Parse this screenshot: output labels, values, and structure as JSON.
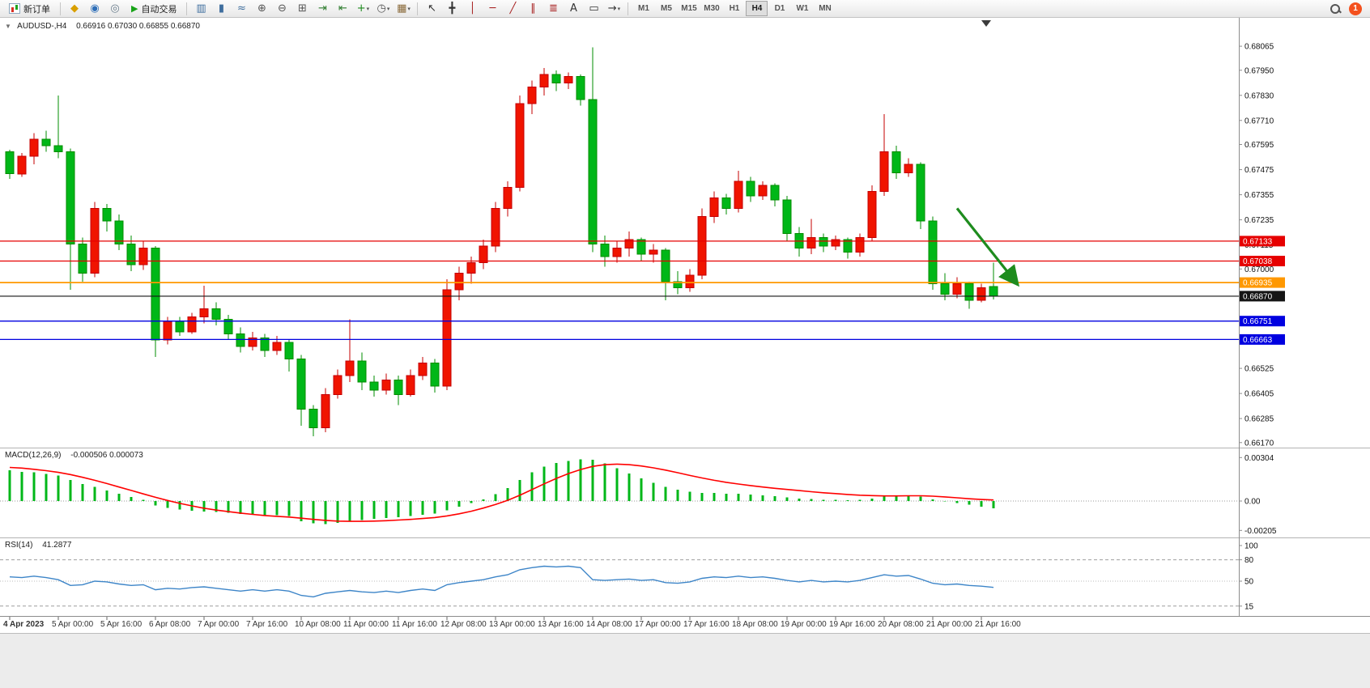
{
  "toolbar": {
    "new_order": {
      "label": "新订单"
    },
    "autotrading": {
      "label": "自动交易"
    },
    "left_icons": [
      {
        "name": "metaeditor-icon",
        "glyph": "◆",
        "color": "#d99f00"
      },
      {
        "name": "mql5-community-icon",
        "glyph": "◉",
        "color": "#2f6fb8"
      },
      {
        "name": "metaquotes-icon",
        "glyph": "◎",
        "color": "#6a7d8c"
      }
    ],
    "chart_icons": [
      {
        "name": "bar-chart-icon",
        "glyph": "▥",
        "color": "#3f6e9e"
      },
      {
        "name": "candlestick-chart-icon",
        "glyph": "▮",
        "color": "#3f6e9e"
      },
      {
        "name": "line-chart-icon",
        "glyph": "≈",
        "color": "#3f6e9e"
      },
      {
        "name": "zoom-in-icon",
        "glyph": "⊕",
        "color": "#555555"
      },
      {
        "name": "zoom-out-icon",
        "glyph": "⊖",
        "color": "#555555"
      },
      {
        "name": "tile-windows-icon",
        "glyph": "⊞",
        "color": "#555555"
      },
      {
        "name": "auto-scroll-icon",
        "glyph": "⇥",
        "color": "#2f7d2f"
      },
      {
        "name": "chart-shift-icon",
        "glyph": "⇤",
        "color": "#2f7d2f"
      },
      {
        "name": "indicators-icon",
        "glyph": "+",
        "color": "#1d8a1d",
        "caret": true
      },
      {
        "name": "periods-icon",
        "glyph": "◷",
        "color": "#555555",
        "caret": true
      },
      {
        "name": "templates-icon",
        "glyph": "▦",
        "color": "#8a6a3a",
        "caret": true
      }
    ],
    "draw_icons": [
      {
        "name": "cursor-icon",
        "glyph": "↖",
        "color": "#333333"
      },
      {
        "name": "crosshair-icon",
        "glyph": "╋",
        "color": "#333333"
      },
      {
        "name": "vertical-line-icon",
        "glyph": "│",
        "color": "#a82222"
      },
      {
        "name": "horizontal-line-icon",
        "glyph": "─",
        "color": "#a82222"
      },
      {
        "name": "trendline-icon",
        "glyph": "╱",
        "color": "#a82222"
      },
      {
        "name": "equidistant-channel-icon",
        "glyph": "∥",
        "color": "#a82222"
      },
      {
        "name": "fibonacci-icon",
        "glyph": "≣",
        "color": "#a82222"
      },
      {
        "name": "text-icon",
        "glyph": "A",
        "color": "#333333"
      },
      {
        "name": "text-label-icon",
        "glyph": "▭",
        "color": "#333333"
      },
      {
        "name": "arrows-shapes-icon",
        "glyph": "→",
        "color": "#333333",
        "caret": true
      }
    ],
    "timeframes": {
      "items": [
        "M1",
        "M5",
        "M15",
        "M30",
        "H1",
        "H4",
        "D1",
        "W1",
        "MN"
      ],
      "active": "H4"
    },
    "notification_count": "1"
  },
  "chart_data": {
    "type": "candlestick",
    "symbol_label": "AUDUSD-,H4",
    "ohlc_text": "0.66916 0.67030 0.66855 0.66870",
    "colors": {
      "bull": "#f01400",
      "bull_dark": "#c40000",
      "bear": "#00b718",
      "bear_dark": "#008c00",
      "rsi_line": "#3d85c8",
      "macd_signal": "#ff0000",
      "macd_hist": "#00b718"
    },
    "price_range": {
      "top": 0.68193,
      "bottom": 0.66146
    },
    "price_axis_ticks": [
      "0.68065",
      "0.67950",
      "0.67830",
      "0.67710",
      "0.67595",
      "0.67475",
      "0.67355",
      "0.67235",
      "0.67115",
      "0.67000",
      "0.66525",
      "0.66405",
      "0.66285",
      "0.66170"
    ],
    "hlines": [
      {
        "price": 0.67133,
        "label": "0.67133",
        "color": "#e60000",
        "width": 1.3
      },
      {
        "price": 0.67038,
        "label": "0.67038",
        "color": "#e60000",
        "width": 1.3
      },
      {
        "price": 0.66935,
        "label": "0.66935",
        "color": "#ff9800",
        "width": 1.8
      },
      {
        "price": 0.6687,
        "label": "0.66870",
        "color": "#151515",
        "width": 1.1
      },
      {
        "price": 0.66751,
        "label": "0.66751",
        "color": "#0000e0",
        "width": 1.3
      },
      {
        "price": 0.66663,
        "label": "0.66663",
        "color": "#0000e0",
        "width": 1.3
      }
    ],
    "arrow": {
      "from": {
        "i": 78,
        "price": 0.6729
      },
      "to": {
        "i": 83,
        "price": 0.66925
      },
      "color": "#1e8c1e"
    },
    "candles": [
      [
        0.6756,
        0.6757,
        0.6743,
        0.67455
      ],
      [
        0.67455,
        0.67555,
        0.6744,
        0.6754
      ],
      [
        0.6754,
        0.6765,
        0.675,
        0.6762
      ],
      [
        0.6762,
        0.6766,
        0.6756,
        0.6759
      ],
      [
        0.6759,
        0.6783,
        0.6753,
        0.6756
      ],
      [
        0.6756,
        0.67575,
        0.669,
        0.6712
      ],
      [
        0.6712,
        0.6715,
        0.6694,
        0.6698
      ],
      [
        0.6698,
        0.6732,
        0.6696,
        0.6729
      ],
      [
        0.6729,
        0.6731,
        0.6718,
        0.6723
      ],
      [
        0.6723,
        0.6726,
        0.6709,
        0.6712
      ],
      [
        0.6712,
        0.6716,
        0.6699,
        0.6702
      ],
      [
        0.6702,
        0.6713,
        0.66995,
        0.671
      ],
      [
        0.671,
        0.6711,
        0.6658,
        0.6666
      ],
      [
        0.6666,
        0.6677,
        0.6664,
        0.6675
      ],
      [
        0.6675,
        0.6677,
        0.6668,
        0.667
      ],
      [
        0.667,
        0.6679,
        0.6669,
        0.6677
      ],
      [
        0.6677,
        0.6692,
        0.6674,
        0.6681
      ],
      [
        0.6681,
        0.6684,
        0.6673,
        0.6676
      ],
      [
        0.6676,
        0.6678,
        0.6666,
        0.6669
      ],
      [
        0.6669,
        0.6672,
        0.666,
        0.6663
      ],
      [
        0.6663,
        0.667,
        0.6661,
        0.6667
      ],
      [
        0.6667,
        0.6669,
        0.6658,
        0.6661
      ],
      [
        0.6661,
        0.6668,
        0.6659,
        0.6665
      ],
      [
        0.6665,
        0.6666,
        0.6651,
        0.6657
      ],
      [
        0.6657,
        0.6659,
        0.6625,
        0.6633
      ],
      [
        0.6633,
        0.6635,
        0.662,
        0.6624
      ],
      [
        0.6624,
        0.6643,
        0.6622,
        0.664
      ],
      [
        0.664,
        0.6652,
        0.6638,
        0.6649
      ],
      [
        0.6649,
        0.6676,
        0.6646,
        0.6656
      ],
      [
        0.6656,
        0.666,
        0.6642,
        0.6646
      ],
      [
        0.6646,
        0.6649,
        0.6639,
        0.6642
      ],
      [
        0.6642,
        0.665,
        0.664,
        0.6647
      ],
      [
        0.6647,
        0.6649,
        0.6635,
        0.664
      ],
      [
        0.664,
        0.6652,
        0.6639,
        0.6649
      ],
      [
        0.6649,
        0.6658,
        0.6647,
        0.6655
      ],
      [
        0.6655,
        0.6657,
        0.6641,
        0.6644
      ],
      [
        0.6644,
        0.6695,
        0.6642,
        0.669
      ],
      [
        0.669,
        0.6701,
        0.6685,
        0.6698
      ],
      [
        0.6698,
        0.6706,
        0.6693,
        0.6703
      ],
      [
        0.6703,
        0.6714,
        0.67,
        0.6711
      ],
      [
        0.6711,
        0.6732,
        0.6708,
        0.6729
      ],
      [
        0.6729,
        0.6742,
        0.6725,
        0.6739
      ],
      [
        0.6739,
        0.6783,
        0.6737,
        0.6779
      ],
      [
        0.6779,
        0.679,
        0.6774,
        0.6787
      ],
      [
        0.6787,
        0.6796,
        0.6783,
        0.6793
      ],
      [
        0.6793,
        0.6795,
        0.6785,
        0.6789
      ],
      [
        0.6789,
        0.6794,
        0.6786,
        0.6792
      ],
      [
        0.6792,
        0.6793,
        0.6778,
        0.6781
      ],
      [
        0.6781,
        0.6806,
        0.6708,
        0.6712
      ],
      [
        0.6712,
        0.6716,
        0.6701,
        0.6706
      ],
      [
        0.6706,
        0.6713,
        0.6703,
        0.671
      ],
      [
        0.671,
        0.6718,
        0.6706,
        0.6714
      ],
      [
        0.6714,
        0.6715,
        0.6704,
        0.6707
      ],
      [
        0.6707,
        0.6712,
        0.6703,
        0.6709
      ],
      [
        0.6709,
        0.671,
        0.6685,
        0.6694
      ],
      [
        0.6694,
        0.6699,
        0.6688,
        0.6691
      ],
      [
        0.6691,
        0.67,
        0.6689,
        0.6697
      ],
      [
        0.6697,
        0.6729,
        0.6695,
        0.6725
      ],
      [
        0.6725,
        0.6737,
        0.6722,
        0.6734
      ],
      [
        0.6734,
        0.6736,
        0.6726,
        0.6729
      ],
      [
        0.6729,
        0.6747,
        0.6727,
        0.6742
      ],
      [
        0.6742,
        0.6744,
        0.6732,
        0.6735
      ],
      [
        0.6735,
        0.6742,
        0.6733,
        0.674
      ],
      [
        0.674,
        0.6741,
        0.673,
        0.6733
      ],
      [
        0.6733,
        0.6735,
        0.6713,
        0.6717
      ],
      [
        0.6717,
        0.672,
        0.6706,
        0.671
      ],
      [
        0.671,
        0.6724,
        0.6707,
        0.6715
      ],
      [
        0.6715,
        0.6717,
        0.6708,
        0.6711
      ],
      [
        0.6711,
        0.6716,
        0.6709,
        0.6714
      ],
      [
        0.6714,
        0.6715,
        0.6705,
        0.6708
      ],
      [
        0.6708,
        0.6717,
        0.6706,
        0.6715
      ],
      [
        0.6715,
        0.674,
        0.6713,
        0.6737
      ],
      [
        0.6737,
        0.6774,
        0.6735,
        0.6756
      ],
      [
        0.6756,
        0.6759,
        0.6743,
        0.6746
      ],
      [
        0.6746,
        0.6753,
        0.6744,
        0.675
      ],
      [
        0.675,
        0.6751,
        0.6719,
        0.6723
      ],
      [
        0.6723,
        0.6725,
        0.669,
        0.6693
      ],
      [
        0.6693,
        0.6698,
        0.6685,
        0.6688
      ],
      [
        0.6688,
        0.6696,
        0.6686,
        0.6693
      ],
      [
        0.6693,
        0.6694,
        0.6681,
        0.6685
      ],
      [
        0.6685,
        0.6693,
        0.6684,
        0.6691
      ],
      [
        0.66916,
        0.6703,
        0.66855,
        0.6687
      ]
    ],
    "time_labels": [
      "4 Apr 2023",
      "5 Apr 00:00",
      "5 Apr 16:00",
      "6 Apr 08:00",
      "7 Apr 00:00",
      "7 Apr 16:00",
      "10 Apr 08:00",
      "11 Apr 00:00",
      "11 Apr 16:00",
      "12 Apr 08:00",
      "13 Apr 00:00",
      "13 Apr 16:00",
      "14 Apr 08:00",
      "17 Apr 00:00",
      "17 Apr 16:00",
      "18 Apr 08:00",
      "19 Apr 00:00",
      "19 Apr 16:00",
      "20 Apr 08:00",
      "21 Apr 00:00",
      "21 Apr 16:00"
    ],
    "macd": {
      "label": "MACD(12,26,9)",
      "values_text": "-0.000506 0.000073",
      "axis_ticks": [
        "0.00304",
        "0.00",
        "-0.00205"
      ],
      "range": {
        "top": 0.00345,
        "bottom": -0.00243
      },
      "histogram": [
        0.00215,
        0.00205,
        0.002,
        0.0019,
        0.00178,
        0.00148,
        0.0012,
        0.00098,
        0.00075,
        0.0005,
        0.00028,
        0.0001,
        -0.0003,
        -0.00048,
        -0.0006,
        -0.00068,
        -0.00072,
        -0.00076,
        -0.00082,
        -0.0009,
        -0.00096,
        -0.001,
        -0.001,
        -0.00105,
        -0.0014,
        -0.00155,
        -0.0016,
        -0.00152,
        -0.0014,
        -0.00132,
        -0.00125,
        -0.00118,
        -0.00112,
        -0.00104,
        -0.00095,
        -0.00088,
        -0.00065,
        -0.0004,
        -0.00015,
        0.00012,
        0.00048,
        0.0009,
        0.00148,
        0.002,
        0.0024,
        0.00265,
        0.0028,
        0.0029,
        0.00288,
        0.00262,
        0.00228,
        0.00192,
        0.00158,
        0.00128,
        0.001,
        0.00078,
        0.00064,
        0.00058,
        0.00056,
        0.0005,
        0.0005,
        0.00045,
        0.0004,
        0.00034,
        0.00026,
        0.00018,
        0.00014,
        0.0001,
        8e-05,
        6e-05,
        8e-05,
        0.00016,
        0.0003,
        0.00036,
        0.00038,
        0.0003,
        0.00012,
        -4e-05,
        -0.00014,
        -0.00026,
        -0.0004,
        -0.000506
      ],
      "signal": [
        0.00235,
        0.0023,
        0.00222,
        0.00212,
        0.002,
        0.00185,
        0.00166,
        0.00145,
        0.00122,
        0.00098,
        0.00074,
        0.0005,
        0.00026,
        4e-05,
        -0.00016,
        -0.00034,
        -0.0005,
        -0.00063,
        -0.00074,
        -0.00084,
        -0.00093,
        -0.00101,
        -0.00107,
        -0.00112,
        -0.0012,
        -0.00128,
        -0.00135,
        -0.0014,
        -0.00142,
        -0.00142,
        -0.0014,
        -0.00137,
        -0.00133,
        -0.00128,
        -0.00122,
        -0.00115,
        -0.00104,
        -0.00089,
        -0.00071,
        -0.00049,
        -0.00024,
        5e-05,
        0.0004,
        0.0008,
        0.0012,
        0.00158,
        0.00192,
        0.0022,
        0.00242,
        0.00254,
        0.00258,
        0.00254,
        0.00245,
        0.00232,
        0.00216,
        0.00198,
        0.00179,
        0.00161,
        0.00145,
        0.00131,
        0.00119,
        0.00108,
        0.00098,
        0.00089,
        0.00081,
        0.00073,
        0.00065,
        0.00058,
        0.00052,
        0.00046,
        0.00041,
        0.00038,
        0.00036,
        0.00036,
        0.00037,
        0.00037,
        0.00034,
        0.00029,
        0.00023,
        0.00016,
        0.00011,
        7.3e-05
      ]
    },
    "rsi": {
      "label": "RSI(14)",
      "value_text": "41.2877",
      "axis_ticks": [
        "100",
        "80",
        "50",
        "15"
      ],
      "levels": [
        80,
        50,
        15
      ],
      "range": {
        "top": 106.8,
        "bottom": 2.3
      },
      "values": [
        56,
        55,
        57,
        55,
        52,
        44,
        45,
        50,
        49,
        46,
        44,
        45,
        38,
        40,
        39,
        41,
        42,
        40,
        38,
        36,
        38,
        36,
        38,
        36,
        30,
        28,
        33,
        35,
        37,
        35,
        34,
        36,
        34,
        37,
        39,
        37,
        45,
        48,
        50,
        52,
        56,
        59,
        66,
        69,
        71,
        70,
        71,
        69,
        52,
        51,
        52,
        53,
        51,
        52,
        48,
        47,
        49,
        54,
        56,
        55,
        57,
        55,
        56,
        54,
        51,
        49,
        51,
        49,
        50,
        49,
        51,
        55,
        59,
        57,
        58,
        53,
        47,
        45,
        46,
        44,
        43,
        41.29
      ]
    }
  }
}
